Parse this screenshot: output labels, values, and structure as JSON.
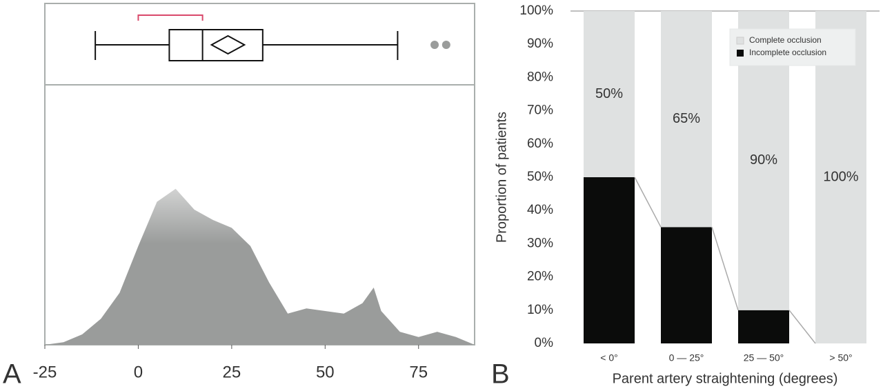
{
  "chart_data": [
    {
      "type": "box",
      "panel_label": "A",
      "xlim": [
        -25,
        90
      ],
      "xticks": [
        -25,
        0,
        25,
        50,
        75
      ],
      "box": {
        "whisker_low": -11.5,
        "q1": 8.3,
        "median": 17.2,
        "q3": 33.3,
        "whisker_high": 69.4,
        "mean": 24,
        "mean_ci": 4.4,
        "outliers": [
          79.3,
          82.4
        ],
        "shortest_half": [
          0,
          17.2
        ]
      },
      "density": {
        "ylim": [
          0,
          1
        ],
        "color": "#9a9c9b",
        "x": [
          -25,
          -20,
          -15,
          -10,
          -5,
          0,
          5,
          10,
          15,
          20,
          25,
          30,
          35,
          40,
          45,
          50,
          55,
          60,
          63,
          65,
          70,
          75,
          80,
          85,
          90
        ],
        "values": [
          0,
          0.01,
          0.04,
          0.1,
          0.2,
          0.38,
          0.55,
          0.6,
          0.52,
          0.48,
          0.45,
          0.38,
          0.24,
          0.12,
          0.14,
          0.13,
          0.12,
          0.16,
          0.22,
          0.13,
          0.05,
          0.03,
          0.05,
          0.03,
          0
        ]
      }
    },
    {
      "type": "stacked_bar",
      "panel_label": "B",
      "xlabel": "Parent artery straightening (degrees)",
      "ylabel": "Proportion of patients",
      "categories": [
        "< 0°",
        "0 — 25°",
        "25 — 50°",
        "> 50°"
      ],
      "ylim": [
        0,
        100
      ],
      "yticks": [
        {
          "value": 0,
          "label": "0%"
        },
        {
          "value": 10,
          "label": "10%"
        },
        {
          "value": 20,
          "label": "20%"
        },
        {
          "value": 30,
          "label": "30%"
        },
        {
          "value": 40,
          "label": "40%"
        },
        {
          "value": 50,
          "label": "50%"
        },
        {
          "value": 60,
          "label": "60%"
        },
        {
          "value": 70,
          "label": "70%"
        },
        {
          "value": 80,
          "label": "80%"
        },
        {
          "value": 90,
          "label": "90%"
        },
        {
          "value": 100,
          "label": "100%"
        }
      ],
      "legend": "top-right",
      "series": [
        {
          "name": "Incomplete occlusion",
          "color": "#0b0c0b",
          "values": [
            50,
            35,
            10,
            0
          ]
        },
        {
          "name": "Complete occlusion",
          "color": "#dfe1e1",
          "values": [
            50,
            65,
            90,
            100
          ],
          "value_labels": [
            "50%",
            "65%",
            "90%",
            "100%"
          ]
        }
      ]
    }
  ]
}
